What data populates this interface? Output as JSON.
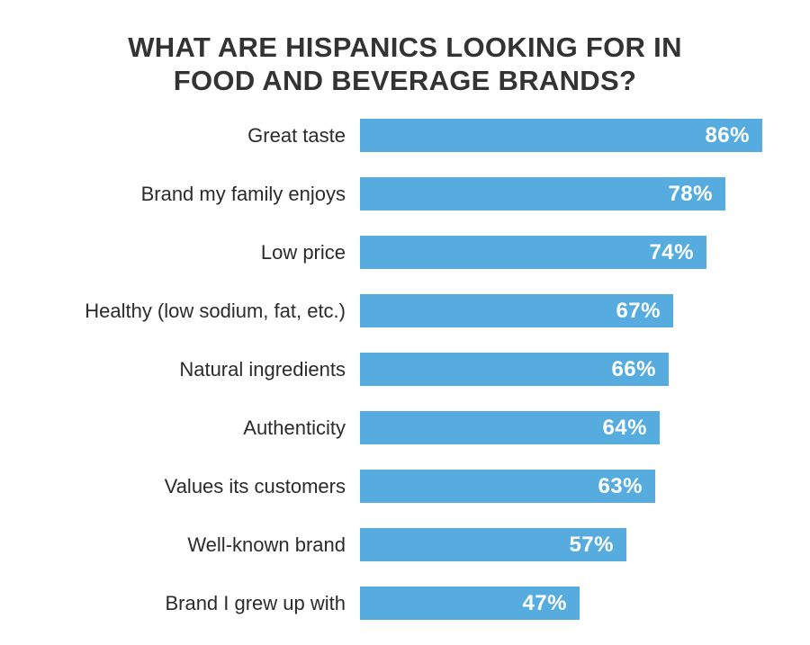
{
  "chart_data": {
    "type": "bar",
    "orientation": "horizontal",
    "title": "WHAT ARE HISPANICS LOOKING FOR IN FOOD AND BEVERAGE BRANDS?",
    "categories": [
      "Great taste",
      "Brand my family enjoys",
      "Low price",
      "Healthy (low sodium, fat, etc.)",
      "Natural ingredients",
      "Authenticity",
      "Values its customers",
      "Well-known brand",
      "Brand I grew up with"
    ],
    "values": [
      86,
      78,
      74,
      67,
      66,
      64,
      63,
      57,
      47
    ],
    "value_suffix": "%",
    "xlim": [
      0,
      100
    ],
    "grid": false,
    "legend": "none",
    "bar_color": "#57ACDF",
    "title_color": "#333333",
    "category_label_color": "#2b2b2b",
    "value_label_color": "#ffffff",
    "background_color": "#ffffff"
  }
}
